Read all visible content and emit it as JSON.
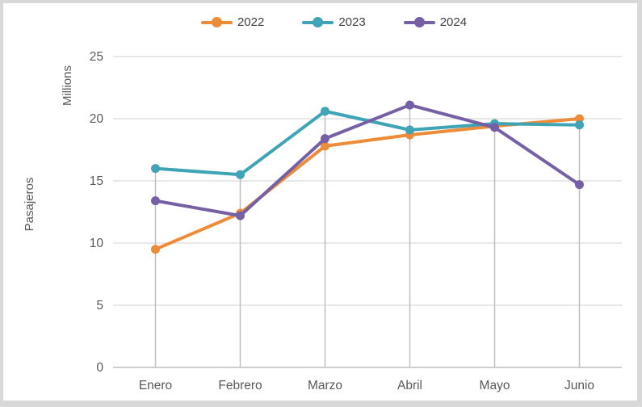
{
  "chart_data": {
    "type": "line",
    "title": "",
    "categories": [
      "Enero",
      "Febrero",
      "Marzo",
      "Abril",
      "Mayo",
      "Junio"
    ],
    "series": [
      {
        "name": "2022",
        "color": "#ED8B38",
        "values": [
          9.5,
          12.4,
          17.8,
          18.7,
          19.4,
          20.0
        ]
      },
      {
        "name": "2023",
        "color": "#3FA4B6",
        "values": [
          16.0,
          15.5,
          20.6,
          19.1,
          19.6,
          19.5
        ]
      },
      {
        "name": "2024",
        "color": "#755FA5",
        "values": [
          13.4,
          12.2,
          18.4,
          21.1,
          19.3,
          14.7
        ]
      }
    ],
    "xlabel": "",
    "ylabel": "Pasajeros",
    "axis_unit_label": "Millions",
    "ylim": [
      0,
      25
    ],
    "ytick_step": 5,
    "yticks": [
      "0",
      "5",
      "10",
      "15",
      "20",
      "25"
    ],
    "grid": "horizontal gridlines at every 5",
    "drop_lines": true,
    "legend_position": "top-center",
    "colors": {
      "gridline": "#d9d9d9",
      "axis_line": "#bfbfbf",
      "drop_line": "#bfbfbf",
      "tick_text": "#595959",
      "legend_text": "#404040",
      "frame": "#d8d8d8"
    }
  }
}
